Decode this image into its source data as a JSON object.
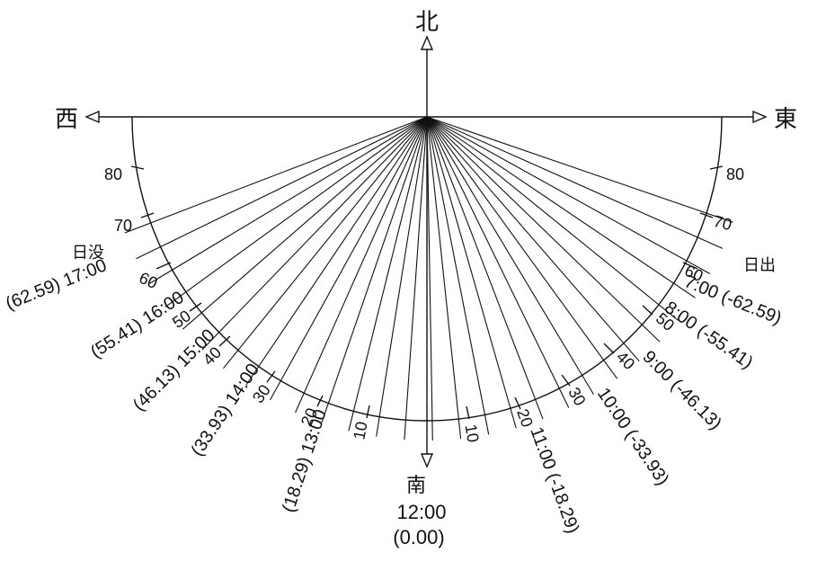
{
  "directions": {
    "north": "北",
    "south": "南",
    "east": "東",
    "west": "西"
  },
  "noon": {
    "time": "12:00",
    "azimuth": "(0.00)"
  },
  "sunrise_label": "日出",
  "sunset_label": "日没",
  "hour_lines_east": [
    {
      "label": "7:00 (-62.59)",
      "azimuth": -62.59
    },
    {
      "label": "8:00 (-55.41)",
      "azimuth": -55.41
    },
    {
      "label": "9:00 (-46.13)",
      "azimuth": -46.13
    },
    {
      "label": "10:00 (-33.93)",
      "azimuth": -33.93
    },
    {
      "label": "11:00 (-18.29)",
      "azimuth": -18.29
    }
  ],
  "hour_lines_west": [
    {
      "label": "(62.59) 17:00",
      "azimuth": 62.59
    },
    {
      "label": "(55.41) 16:00",
      "azimuth": 55.41
    },
    {
      "label": "(46.13) 15:00",
      "azimuth": 46.13
    },
    {
      "label": "(33.93) 14:00",
      "azimuth": 33.93
    },
    {
      "label": "(18.29) 13:00",
      "azimuth": 18.29
    }
  ],
  "degree_ticks": [
    "10",
    "20",
    "30",
    "40",
    "50",
    "60",
    "70",
    "80"
  ]
}
